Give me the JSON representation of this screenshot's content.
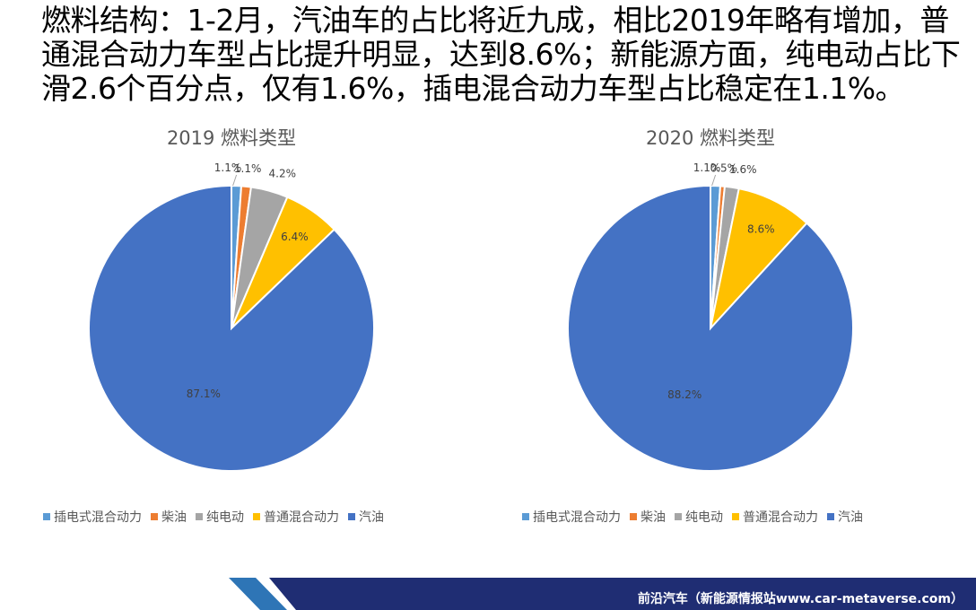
{
  "headline": "燃料结构：1-2月，汽油车的占比将近九成，相比2019年略有增加，普通混合动力车型占比提升明显，达到8.6%；新能源方面，纯电动占比下滑2.6个百分点，仅有1.6%，插电混合动力车型占比稳定在1.1%。",
  "footer": "前沿汽车（新能源情报站www.car-metaverse.com）",
  "colors": {
    "插电式混合动力": "#5B9BD5",
    "柴油": "#ED7D31",
    "纯电动": "#A5A5A5",
    "普通混合动力": "#FFC000",
    "汽油": "#4472C4",
    "footer_navy": "#1F2D73",
    "footer_accent": "#2E75B6"
  },
  "chart_data": [
    {
      "type": "pie",
      "title": "2019 燃料类型",
      "categories": [
        "插电式混合动力",
        "柴油",
        "纯电动",
        "普通混合动力",
        "汽油"
      ],
      "values": [
        1.1,
        1.1,
        4.2,
        6.4,
        87.1
      ],
      "labels": [
        "1.1%",
        "1.1%",
        "4.2%",
        "6.4%",
        "87.1%"
      ],
      "legend": "bottom"
    },
    {
      "type": "pie",
      "title": "2020 燃料类型",
      "categories": [
        "插电式混合动力",
        "柴油",
        "纯电动",
        "普通混合动力",
        "汽油"
      ],
      "values": [
        1.1,
        0.5,
        1.6,
        8.6,
        88.2
      ],
      "labels": [
        "1.1%",
        "0.5%",
        "1.6%",
        "8.6%",
        "88.2%"
      ],
      "legend": "bottom"
    }
  ]
}
